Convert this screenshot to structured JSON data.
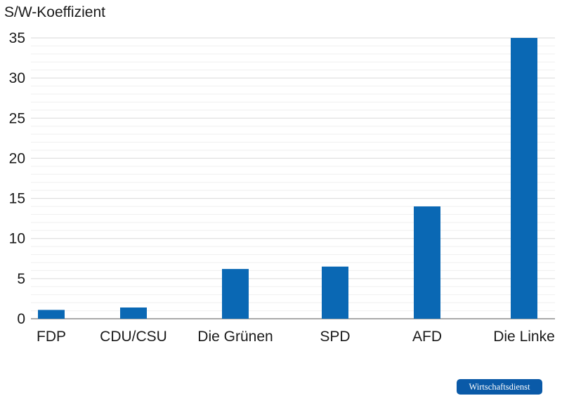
{
  "source_label": "Wirtschaftsdienst",
  "colors": {
    "bar": "#0a68b4",
    "grid_major": "#d9d9d9",
    "grid_minor": "#efefef",
    "axis": "#555555",
    "badge": "#0a5aa8"
  },
  "chart_data": {
    "type": "bar",
    "title": "",
    "xlabel": "",
    "ylabel": "S/W-Koeffizient",
    "categories": [
      "FDP",
      "CDU/CSU",
      "Die Grünen",
      "SPD",
      "AFD",
      "Die Linke"
    ],
    "values": [
      1.1,
      1.4,
      6.2,
      6.5,
      14,
      35
    ],
    "ylim": [
      0,
      35
    ],
    "yticks": [
      0,
      5,
      10,
      15,
      20,
      25,
      30,
      35
    ],
    "grid": true,
    "legend": "none"
  }
}
